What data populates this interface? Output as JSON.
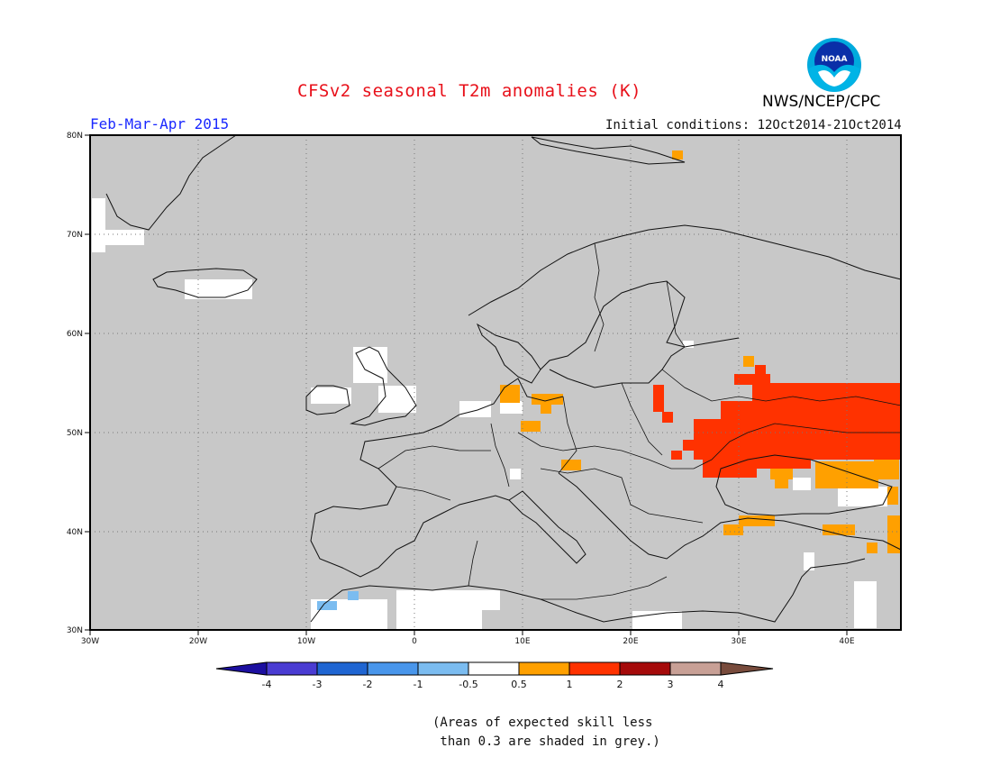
{
  "header": {
    "title": "CFSv2 seasonal T2m anomalies (K)",
    "period": "Feb-Mar-Apr 2015",
    "initial_conditions": "Initial conditions: 12Oct2014-21Oct2014",
    "agency": "NWS/NCEP/CPC",
    "logo_text": "NOAA"
  },
  "map": {
    "lon_ticks": [
      "30W",
      "20W",
      "10W",
      "0",
      "10E",
      "20E",
      "30E",
      "40E"
    ],
    "lat_ticks": [
      "80N",
      "70N",
      "60N",
      "50N",
      "40N",
      "30N"
    ],
    "lon_range": [
      -30,
      45
    ],
    "lat_range": [
      30,
      80
    ],
    "grid": true,
    "background_color": "#c8c8c8"
  },
  "legend": {
    "ticks": [
      "-4",
      "-3",
      "-2",
      "-1",
      "-0.5",
      "0.5",
      "1",
      "2",
      "3",
      "4"
    ],
    "colors": [
      "#1c0fa0",
      "#4a3cd2",
      "#1f65d2",
      "#4996eb",
      "#7bbcf0",
      "#ffffff",
      "#ffa000",
      "#ff3200",
      "#a50a0a",
      "#c8a096",
      "#784b3c"
    ]
  },
  "note": {
    "line1": "(Areas of expected skill less",
    "line2": " than 0.3 are shaded in grey.)"
  }
}
